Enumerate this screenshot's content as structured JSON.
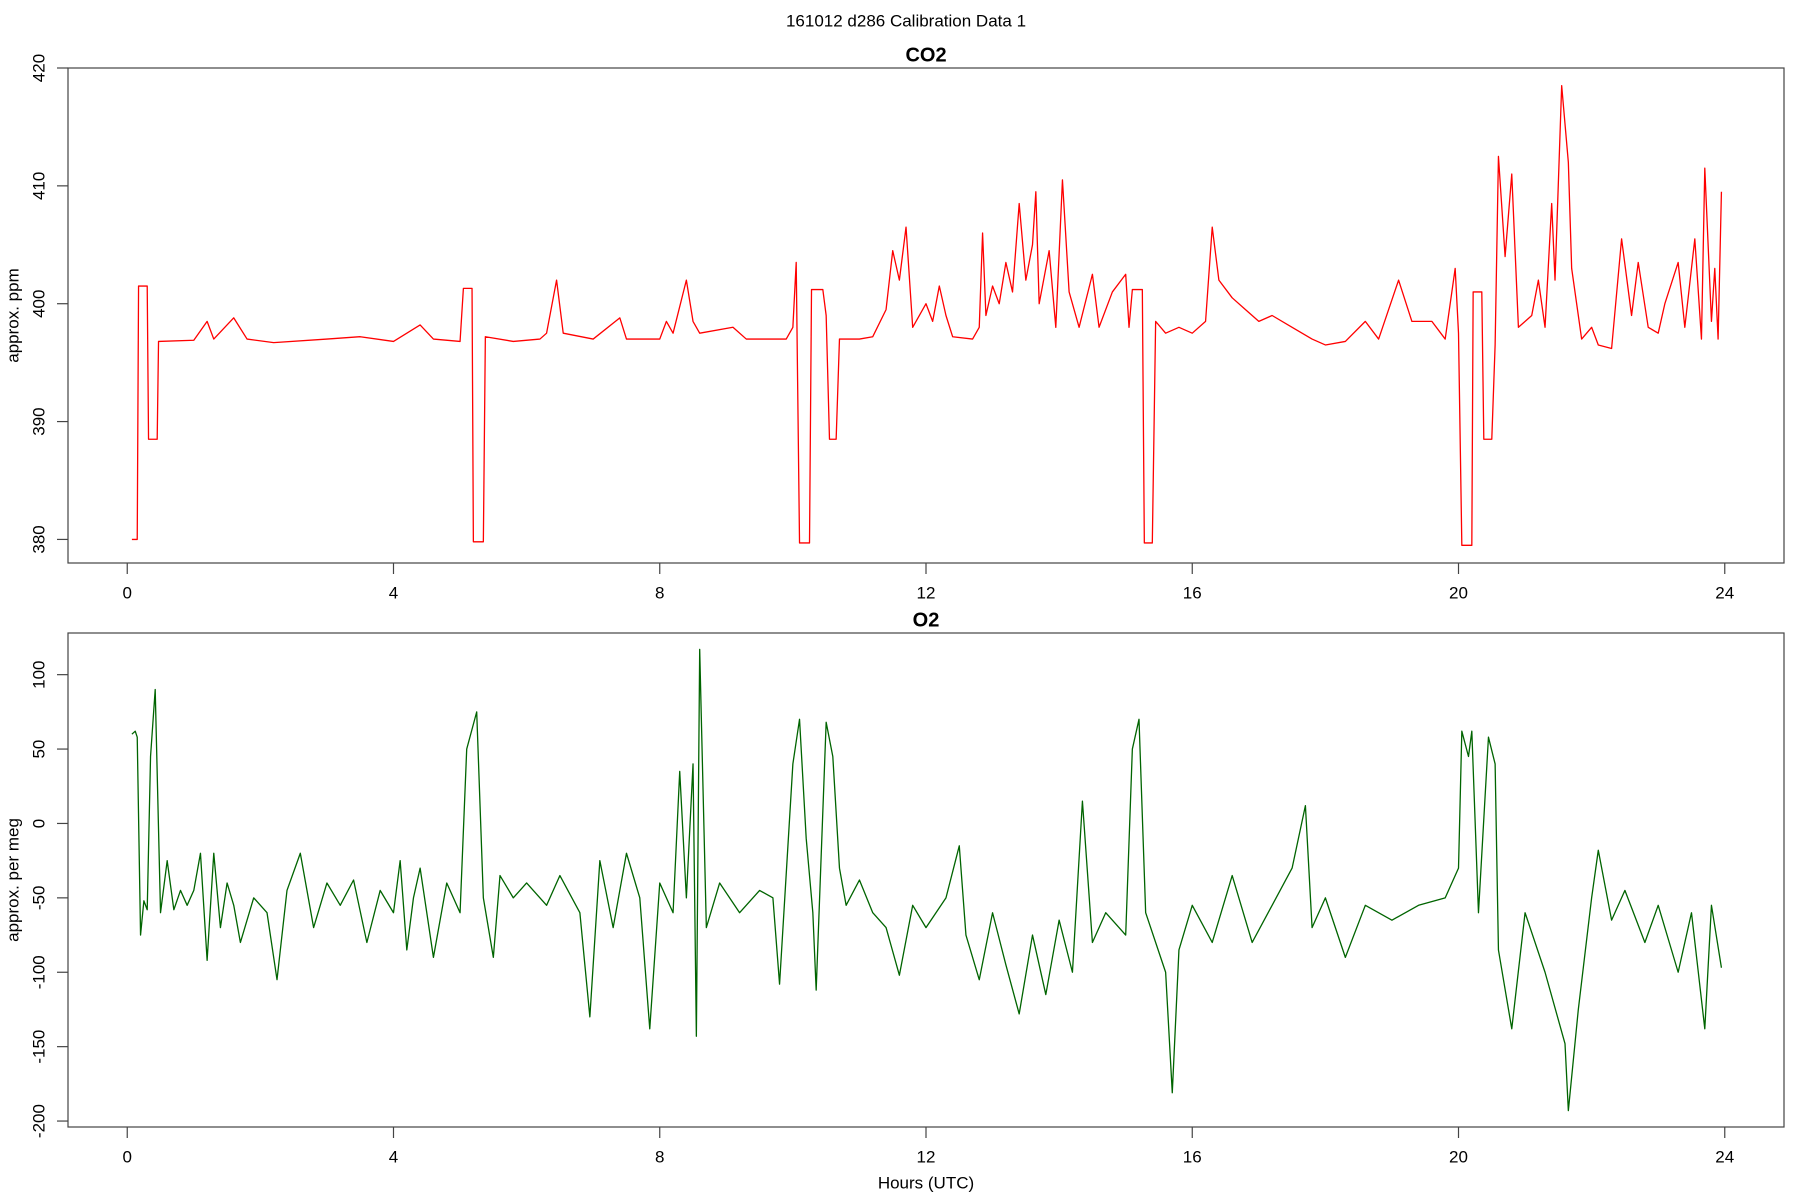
{
  "title": "161012   d286   Calibration Data 1",
  "chart_data": [
    {
      "type": "line",
      "title": "CO2",
      "y_label": "approx. ppm",
      "color": "#ff0000",
      "xlim": [
        -0.89,
        24.89
      ],
      "xticks": [
        0,
        4,
        8,
        12,
        16,
        20,
        24
      ],
      "ylim": [
        378,
        420
      ],
      "yticks": [
        380,
        390,
        400,
        410,
        420
      ],
      "x": [
        0.07,
        0.15,
        0.17,
        0.3,
        0.32,
        0.45,
        0.47,
        1.0,
        1.2,
        1.3,
        1.6,
        1.8,
        2.2,
        3.0,
        3.5,
        4.0,
        4.4,
        4.6,
        5.0,
        5.05,
        5.18,
        5.2,
        5.35,
        5.38,
        5.8,
        6.2,
        6.3,
        6.45,
        6.55,
        7.0,
        7.4,
        7.5,
        8.0,
        8.1,
        8.2,
        8.4,
        8.5,
        8.6,
        9.1,
        9.3,
        9.9,
        10.0,
        10.05,
        10.1,
        10.25,
        10.28,
        10.45,
        10.5,
        10.55,
        10.65,
        10.7,
        11.0,
        11.2,
        11.4,
        11.5,
        11.6,
        11.7,
        11.8,
        12.0,
        12.1,
        12.2,
        12.3,
        12.4,
        12.7,
        12.8,
        12.85,
        12.9,
        13.0,
        13.1,
        13.2,
        13.3,
        13.4,
        13.5,
        13.6,
        13.65,
        13.7,
        13.85,
        13.95,
        14.05,
        14.15,
        14.3,
        14.5,
        14.6,
        14.8,
        15.0,
        15.05,
        15.1,
        15.25,
        15.28,
        15.4,
        15.45,
        15.6,
        15.8,
        16.0,
        16.2,
        16.3,
        16.4,
        16.6,
        16.8,
        17.0,
        17.2,
        17.5,
        17.8,
        18.0,
        18.3,
        18.6,
        18.8,
        19.1,
        19.3,
        19.6,
        19.8,
        19.95,
        20.0,
        20.05,
        20.2,
        20.22,
        20.35,
        20.38,
        20.5,
        20.55,
        20.6,
        20.7,
        20.8,
        20.9,
        21.1,
        21.2,
        21.3,
        21.4,
        21.45,
        21.55,
        21.65,
        21.7,
        21.85,
        22.0,
        22.1,
        22.3,
        22.45,
        22.6,
        22.7,
        22.85,
        23.0,
        23.1,
        23.3,
        23.4,
        23.55,
        23.65,
        23.7,
        23.8,
        23.85,
        23.9,
        23.95
      ],
      "values": [
        380,
        380,
        401.5,
        401.5,
        388.5,
        388.5,
        396.8,
        396.9,
        398.5,
        397,
        398.8,
        397,
        396.7,
        397,
        397.2,
        396.8,
        398.2,
        397,
        396.8,
        401.3,
        401.3,
        379.8,
        379.8,
        397.2,
        396.8,
        397,
        397.5,
        402,
        397.5,
        397,
        398.8,
        397,
        397,
        398.5,
        397.5,
        402,
        398.5,
        397.5,
        398,
        397,
        397,
        398,
        403.5,
        379.7,
        379.7,
        401.2,
        401.2,
        399,
        388.5,
        388.5,
        397,
        397,
        397.2,
        399.5,
        404.5,
        402,
        406.5,
        398,
        400,
        398.5,
        401.5,
        399,
        397.2,
        397,
        398,
        406,
        399,
        401.5,
        400,
        403.5,
        401,
        408.5,
        402,
        405,
        409.5,
        400,
        404.5,
        398,
        410.5,
        401,
        398,
        402.5,
        398,
        401,
        402.5,
        398,
        401.2,
        401.2,
        379.7,
        379.7,
        398.5,
        397.5,
        398,
        397.5,
        398.5,
        406.5,
        402,
        400.5,
        399.5,
        398.5,
        399,
        398,
        397,
        396.5,
        396.8,
        398.5,
        397,
        402,
        398.5,
        398.5,
        397,
        403,
        397.5,
        379.5,
        379.5,
        401,
        401,
        388.5,
        388.5,
        396.5,
        412.5,
        404,
        411,
        398,
        399,
        402,
        398,
        408.5,
        402,
        418.5,
        412,
        403,
        397,
        398,
        396.5,
        396.2,
        405.5,
        399,
        403.5,
        398,
        397.5,
        400,
        403.5,
        398,
        405.5,
        397,
        411.5,
        398.5,
        403,
        397,
        409.5
      ]
    },
    {
      "type": "line",
      "title": "O2",
      "y_label": "approx. per meg",
      "x_label": "Hours (UTC)",
      "color": "#006400",
      "xlim": [
        -0.89,
        24.89
      ],
      "xticks": [
        0,
        4,
        8,
        12,
        16,
        20,
        24
      ],
      "ylim": [
        -204,
        128
      ],
      "yticks": [
        -200,
        -150,
        -100,
        -50,
        0,
        50,
        100
      ],
      "x": [
        0.07,
        0.12,
        0.15,
        0.2,
        0.25,
        0.3,
        0.35,
        0.42,
        0.5,
        0.6,
        0.7,
        0.8,
        0.9,
        1.0,
        1.1,
        1.2,
        1.3,
        1.4,
        1.5,
        1.6,
        1.7,
        1.9,
        2.1,
        2.25,
        2.4,
        2.6,
        2.8,
        3.0,
        3.2,
        3.4,
        3.6,
        3.8,
        4.0,
        4.1,
        4.2,
        4.3,
        4.4,
        4.6,
        4.8,
        5.0,
        5.1,
        5.25,
        5.35,
        5.5,
        5.6,
        5.8,
        6.0,
        6.3,
        6.5,
        6.8,
        6.95,
        7.1,
        7.3,
        7.5,
        7.7,
        7.85,
        8.0,
        8.2,
        8.3,
        8.4,
        8.5,
        8.55,
        8.6,
        8.7,
        8.9,
        9.2,
        9.5,
        9.7,
        9.8,
        10.0,
        10.1,
        10.2,
        10.3,
        10.35,
        10.5,
        10.6,
        10.7,
        10.8,
        11.0,
        11.2,
        11.4,
        11.6,
        11.8,
        12.0,
        12.3,
        12.5,
        12.6,
        12.8,
        13.0,
        13.2,
        13.4,
        13.6,
        13.8,
        14.0,
        14.2,
        14.35,
        14.5,
        14.7,
        15.0,
        15.1,
        15.2,
        15.3,
        15.6,
        15.7,
        15.8,
        16.0,
        16.3,
        16.6,
        16.9,
        17.2,
        17.5,
        17.7,
        17.8,
        18.0,
        18.3,
        18.6,
        19.0,
        19.4,
        19.8,
        20.0,
        20.05,
        20.15,
        20.2,
        20.3,
        20.45,
        20.55,
        20.6,
        20.8,
        21.0,
        21.3,
        21.6,
        21.65,
        21.8,
        22.0,
        22.1,
        22.3,
        22.5,
        22.8,
        23.0,
        23.3,
        23.5,
        23.7,
        23.8,
        23.95
      ],
      "values": [
        60,
        62,
        58,
        -75,
        -52,
        -58,
        45,
        90,
        -60,
        -25,
        -58,
        -45,
        -55,
        -45,
        -20,
        -92,
        -20,
        -70,
        -40,
        -55,
        -80,
        -50,
        -60,
        -105,
        -45,
        -20,
        -70,
        -40,
        -55,
        -38,
        -80,
        -45,
        -60,
        -25,
        -85,
        -50,
        -30,
        -90,
        -40,
        -60,
        50,
        75,
        -50,
        -90,
        -35,
        -50,
        -40,
        -55,
        -35,
        -60,
        -130,
        -25,
        -70,
        -20,
        -50,
        -138,
        -40,
        -60,
        35,
        -50,
        40,
        -143,
        117,
        -70,
        -40,
        -60,
        -45,
        -50,
        -108,
        40,
        70,
        -10,
        -60,
        -112,
        68,
        45,
        -30,
        -55,
        -38,
        -60,
        -70,
        -102,
        -55,
        -70,
        -50,
        -15,
        -75,
        -105,
        -60,
        -95,
        -128,
        -75,
        -115,
        -65,
        -100,
        15,
        -80,
        -60,
        -75,
        50,
        70,
        -60,
        -100,
        -181,
        -85,
        -55,
        -80,
        -35,
        -80,
        -55,
        -30,
        12,
        -70,
        -50,
        -90,
        -55,
        -65,
        -55,
        -50,
        -30,
        62,
        45,
        62,
        -60,
        58,
        40,
        -85,
        -138,
        -60,
        -100,
        -148,
        -193,
        -125,
        -50,
        -18,
        -65,
        -45,
        -80,
        -55,
        -100,
        -60,
        -138,
        -55,
        -97
      ]
    }
  ]
}
